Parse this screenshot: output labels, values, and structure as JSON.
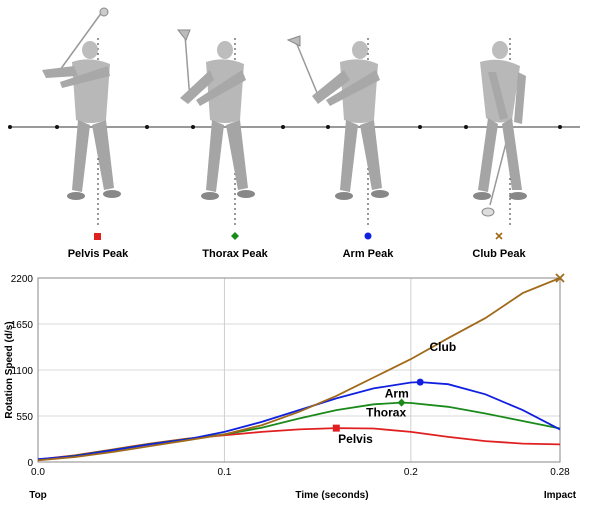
{
  "figures": {
    "panels": [
      {
        "label": "Pelvis Peak",
        "marker": "square",
        "color": "#e02020"
      },
      {
        "label": "Thorax Peak",
        "marker": "diamond",
        "color": "#1a8a1a"
      },
      {
        "label": "Arm Peak",
        "marker": "circle",
        "color": "#1020e0"
      },
      {
        "label": "Club Peak",
        "marker": "x",
        "color": "#a06a1a"
      }
    ]
  },
  "chart_data": {
    "type": "line",
    "title": "",
    "xlabel": "Time (seconds)",
    "ylabel": "Rotation Speed (d/s)",
    "xlim": [
      0,
      0.28
    ],
    "ylim": [
      0,
      2200
    ],
    "xticks": [
      0.0,
      0.1,
      0.2,
      0.28
    ],
    "xtick_labels": [
      "0.0",
      "0.1",
      "0.2",
      "0.28"
    ],
    "yticks": [
      0,
      550,
      1100,
      1650,
      2200
    ],
    "ytick_labels": [
      "0",
      "550",
      "1100",
      "1650",
      "2200"
    ],
    "x_endpoint_labels": {
      "start": "Top",
      "end": "Impact"
    },
    "grid": "vertical",
    "series": [
      {
        "name": "Pelvis",
        "color": "#e02020",
        "marker": "square",
        "peak": [
          0.16,
          405
        ],
        "points": [
          [
            0,
            30
          ],
          [
            0.02,
            80
          ],
          [
            0.04,
            150
          ],
          [
            0.06,
            220
          ],
          [
            0.08,
            280
          ],
          [
            0.1,
            320
          ],
          [
            0.12,
            360
          ],
          [
            0.14,
            390
          ],
          [
            0.16,
            405
          ],
          [
            0.18,
            400
          ],
          [
            0.2,
            360
          ],
          [
            0.22,
            300
          ],
          [
            0.24,
            250
          ],
          [
            0.26,
            220
          ],
          [
            0.28,
            210
          ]
        ]
      },
      {
        "name": "Thorax",
        "color": "#1a8a1a",
        "marker": "diamond",
        "peak": [
          0.195,
          710
        ],
        "points": [
          [
            0,
            25
          ],
          [
            0.02,
            75
          ],
          [
            0.04,
            145
          ],
          [
            0.06,
            215
          ],
          [
            0.08,
            275
          ],
          [
            0.1,
            330
          ],
          [
            0.12,
            410
          ],
          [
            0.14,
            520
          ],
          [
            0.16,
            620
          ],
          [
            0.18,
            690
          ],
          [
            0.195,
            710
          ],
          [
            0.2,
            705
          ],
          [
            0.22,
            660
          ],
          [
            0.24,
            580
          ],
          [
            0.26,
            490
          ],
          [
            0.28,
            400
          ]
        ]
      },
      {
        "name": "Arm",
        "color": "#1020e0",
        "marker": "circle",
        "peak": [
          0.205,
          955
        ],
        "points": [
          [
            0,
            35
          ],
          [
            0.02,
            70
          ],
          [
            0.04,
            140
          ],
          [
            0.06,
            210
          ],
          [
            0.08,
            270
          ],
          [
            0.1,
            360
          ],
          [
            0.12,
            480
          ],
          [
            0.14,
            620
          ],
          [
            0.16,
            760
          ],
          [
            0.18,
            880
          ],
          [
            0.2,
            950
          ],
          [
            0.205,
            955
          ],
          [
            0.22,
            930
          ],
          [
            0.24,
            810
          ],
          [
            0.26,
            620
          ],
          [
            0.28,
            390
          ]
        ]
      },
      {
        "name": "Club",
        "color": "#a06a1a",
        "marker": "x",
        "peak": [
          0.28,
          2200
        ],
        "points": [
          [
            0,
            20
          ],
          [
            0.02,
            60
          ],
          [
            0.04,
            120
          ],
          [
            0.06,
            190
          ],
          [
            0.08,
            260
          ],
          [
            0.1,
            330
          ],
          [
            0.12,
            440
          ],
          [
            0.14,
            600
          ],
          [
            0.16,
            790
          ],
          [
            0.18,
            1010
          ],
          [
            0.2,
            1230
          ],
          [
            0.22,
            1480
          ],
          [
            0.24,
            1720
          ],
          [
            0.26,
            2020
          ],
          [
            0.28,
            2200
          ]
        ]
      }
    ],
    "series_labels": [
      {
        "text": "Club",
        "series": "Club"
      },
      {
        "text": "Arm",
        "series": "Arm"
      },
      {
        "text": "Thorax",
        "series": "Thorax"
      },
      {
        "text": "Pelvis",
        "series": "Pelvis"
      }
    ]
  }
}
